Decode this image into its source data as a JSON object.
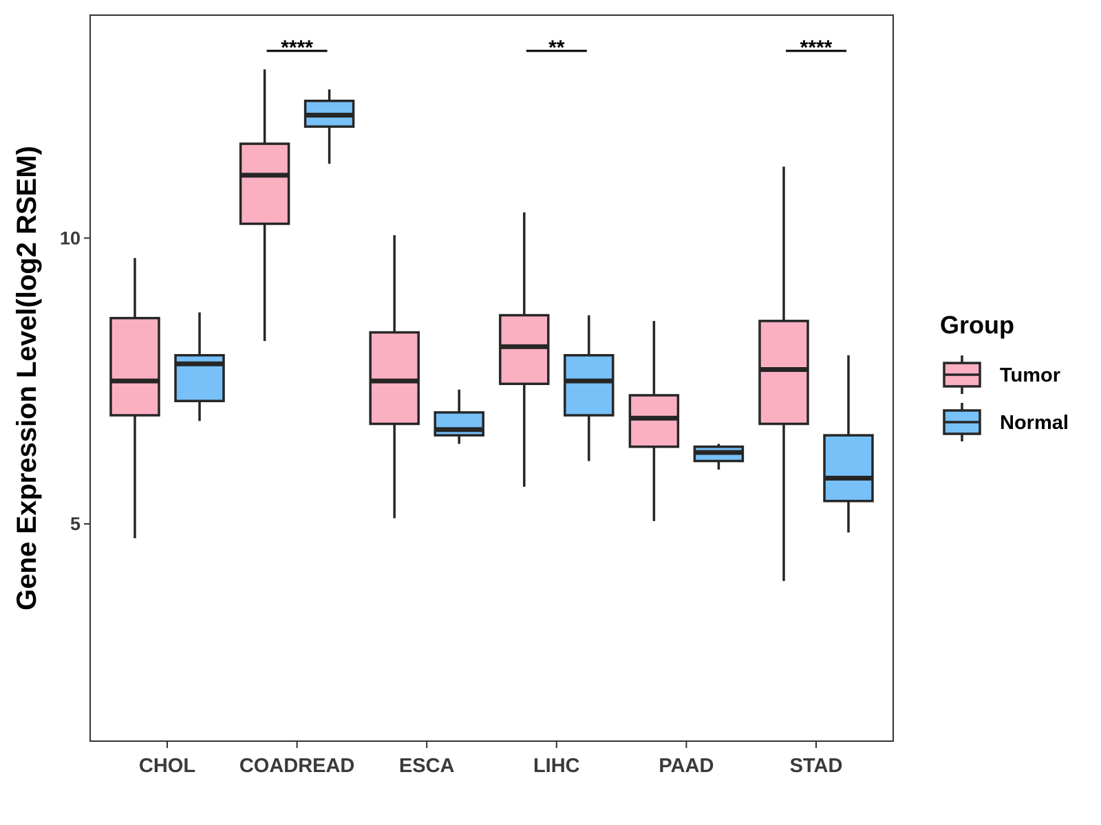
{
  "chart_data": {
    "type": "boxplot",
    "title": "",
    "xlabel": "",
    "ylabel": "Gene Expression Level(log2 RSEM)",
    "ylim": [
      1.2,
      13.9
    ],
    "yticks": [
      5,
      10
    ],
    "ytick_labels": [
      "5",
      "10"
    ],
    "grid": false,
    "categories": [
      "CHOL",
      "COADREAD",
      "ESCA",
      "LIHC",
      "PAAD",
      "STAD"
    ],
    "legend": {
      "title": "Group",
      "position": "right",
      "entries": [
        "Tumor",
        "Normal"
      ]
    },
    "series": [
      {
        "name": "Tumor",
        "color": "#fbb0c2",
        "boxes": [
          {
            "min": 4.75,
            "q1": 6.9,
            "median": 7.5,
            "q3": 8.6,
            "max": 9.65
          },
          {
            "min": 8.2,
            "q1": 10.25,
            "median": 11.1,
            "q3": 11.65,
            "max": 12.95
          },
          {
            "min": 5.1,
            "q1": 6.75,
            "median": 7.5,
            "q3": 8.35,
            "max": 10.05
          },
          {
            "min": 5.65,
            "q1": 7.45,
            "median": 8.1,
            "q3": 8.65,
            "max": 10.45
          },
          {
            "min": 5.05,
            "q1": 6.35,
            "median": 6.85,
            "q3": 7.25,
            "max": 8.55
          },
          {
            "min": 4.0,
            "q1": 6.75,
            "median": 7.7,
            "q3": 8.55,
            "max": 11.25
          }
        ]
      },
      {
        "name": "Normal",
        "color": "#77c0f8",
        "boxes": [
          {
            "min": 6.8,
            "q1": 7.15,
            "median": 7.8,
            "q3": 7.95,
            "max": 8.7
          },
          {
            "min": 11.3,
            "q1": 11.95,
            "median": 12.15,
            "q3": 12.4,
            "max": 12.6
          },
          {
            "min": 6.4,
            "q1": 6.55,
            "median": 6.65,
            "q3": 6.95,
            "max": 7.35
          },
          {
            "min": 6.1,
            "q1": 6.9,
            "median": 7.5,
            "q3": 7.95,
            "max": 8.65
          },
          {
            "min": 5.95,
            "q1": 6.1,
            "median": 6.25,
            "q3": 6.35,
            "max": 6.4
          },
          {
            "min": 4.85,
            "q1": 5.4,
            "median": 5.8,
            "q3": 6.55,
            "max": 7.95
          }
        ]
      }
    ],
    "annotations": [
      {
        "category": "COADREAD",
        "label": "****"
      },
      {
        "category": "LIHC",
        "label": "**"
      },
      {
        "category": "STAD",
        "label": "****"
      }
    ]
  }
}
